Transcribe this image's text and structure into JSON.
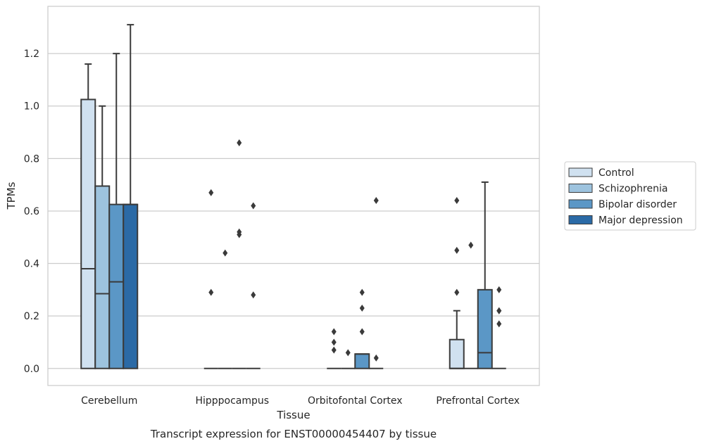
{
  "chart_data": {
    "type": "box",
    "caption": "Transcript expression for ENST00000454407 by tissue",
    "xlabel": "Tissue",
    "ylabel": "TPMs",
    "ylim": [
      -0.065,
      1.38
    ],
    "yticks": [
      "0.0",
      "0.2",
      "0.4",
      "0.6",
      "0.8",
      "1.0",
      "1.2"
    ],
    "grid": true,
    "legend_position": "right",
    "categories": [
      "Cerebellum",
      "Hipppocampus",
      "Orbitofontal Cortex",
      "Prefrontal Cortex"
    ],
    "series": [
      {
        "name": "Control",
        "color": "#d0e1f0",
        "boxes": [
          {
            "q1": 0,
            "median": 0.38,
            "q3": 1.025,
            "whisker_low": 0,
            "whisker_high": 1.16,
            "outliers": []
          },
          {
            "q1": 0,
            "median": 0,
            "q3": 0,
            "whisker_low": 0,
            "whisker_high": 0,
            "outliers": [
              0.29,
              0.67
            ]
          },
          {
            "q1": 0,
            "median": 0,
            "q3": 0,
            "whisker_low": 0,
            "whisker_high": 0,
            "outliers": [
              0.07,
              0.1,
              0.14
            ]
          },
          {
            "q1": 0,
            "median": 0,
            "q3": 0.11,
            "whisker_low": 0,
            "whisker_high": 0.22,
            "outliers": [
              0.29,
              0.45,
              0.64
            ]
          }
        ]
      },
      {
        "name": "Schizophrenia",
        "color": "#9dc3de",
        "boxes": [
          {
            "q1": 0,
            "median": 0.285,
            "q3": 0.695,
            "whisker_low": 0,
            "whisker_high": 1.0,
            "outliers": []
          },
          {
            "q1": 0,
            "median": 0,
            "q3": 0,
            "whisker_low": 0,
            "whisker_high": 0,
            "outliers": [
              0.44
            ]
          },
          {
            "q1": 0,
            "median": 0,
            "q3": 0,
            "whisker_low": 0,
            "whisker_high": 0,
            "outliers": [
              0.06
            ]
          },
          {
            "q1": 0,
            "median": 0,
            "q3": 0,
            "whisker_low": 0,
            "whisker_high": 0,
            "outliers": [
              0.47
            ]
          }
        ]
      },
      {
        "name": "Bipolar disorder",
        "color": "#5b97c6",
        "boxes": [
          {
            "q1": 0,
            "median": 0.33,
            "q3": 0.625,
            "whisker_low": 0,
            "whisker_high": 1.2,
            "outliers": []
          },
          {
            "q1": 0,
            "median": 0,
            "q3": 0,
            "whisker_low": 0,
            "whisker_high": 0,
            "outliers": [
              0.51,
              0.52,
              0.86
            ]
          },
          {
            "q1": 0,
            "median": 0.055,
            "q3": 0.055,
            "whisker_low": 0,
            "whisker_high": 0.055,
            "outliers": [
              0.14,
              0.23,
              0.29
            ]
          },
          {
            "q1": 0,
            "median": 0.06,
            "q3": 0.3,
            "whisker_low": 0,
            "whisker_high": 0.71,
            "outliers": []
          }
        ]
      },
      {
        "name": "Major depression",
        "color": "#2b6aa6",
        "boxes": [
          {
            "q1": 0,
            "median": 0.625,
            "q3": 0.625,
            "whisker_low": 0,
            "whisker_high": 1.31,
            "outliers": []
          },
          {
            "q1": 0,
            "median": 0,
            "q3": 0,
            "whisker_low": 0,
            "whisker_high": 0,
            "outliers": [
              0.28,
              0.62
            ]
          },
          {
            "q1": 0,
            "median": 0,
            "q3": 0,
            "whisker_low": 0,
            "whisker_high": 0,
            "outliers": [
              0.04,
              0.64
            ]
          },
          {
            "q1": 0,
            "median": 0,
            "q3": 0,
            "whisker_low": 0,
            "whisker_high": 0,
            "outliers": [
              0.17,
              0.22,
              0.22,
              0.3
            ]
          }
        ]
      }
    ]
  }
}
